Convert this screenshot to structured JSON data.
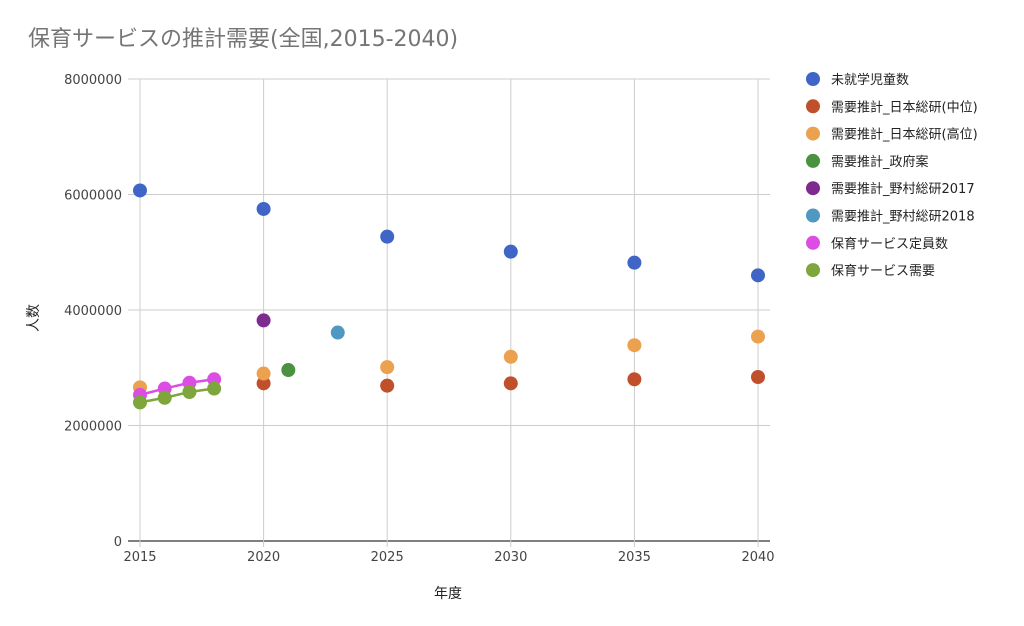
{
  "chart_data": {
    "type": "scatter",
    "title": "保育サービスの推計需要(全国,2015-2040)",
    "xlabel": "年度",
    "ylabel": "人数",
    "xlim": [
      2015,
      2040
    ],
    "ylim": [
      0,
      8000000
    ],
    "x_ticks": [
      "2015",
      "2020",
      "2025",
      "2030",
      "2035",
      "2040"
    ],
    "y_ticks": [
      "0",
      "2000000",
      "4000000",
      "6000000",
      "8000000"
    ],
    "grid": true,
    "legend_position": "right",
    "series": [
      {
        "name": "未就学児童数",
        "color": "#3f66c6",
        "line": false,
        "points": [
          [
            2015,
            6070000
          ],
          [
            2020,
            5750000
          ],
          [
            2025,
            5270000
          ],
          [
            2030,
            5010000
          ],
          [
            2035,
            4820000
          ],
          [
            2040,
            4600000
          ]
        ]
      },
      {
        "name": "需要推計_日本総研(中位)",
        "color": "#c0502c",
        "line": false,
        "points": [
          [
            2020,
            2730000
          ],
          [
            2025,
            2690000
          ],
          [
            2030,
            2730000
          ],
          [
            2035,
            2800000
          ],
          [
            2040,
            2840000
          ]
        ]
      },
      {
        "name": "需要推計_日本総研(高位)",
        "color": "#eba14d",
        "line": false,
        "points": [
          [
            2015,
            2660000
          ],
          [
            2020,
            2900000
          ],
          [
            2025,
            3010000
          ],
          [
            2030,
            3190000
          ],
          [
            2035,
            3390000
          ],
          [
            2040,
            3540000
          ]
        ]
      },
      {
        "name": "需要推計_政府案",
        "color": "#4a9140",
        "line": false,
        "points": [
          [
            2021,
            2960000
          ]
        ]
      },
      {
        "name": "需要推計_野村総研2017",
        "color": "#7d2b8f",
        "line": false,
        "points": [
          [
            2020,
            3820000
          ]
        ]
      },
      {
        "name": "需要推計_野村総研2018",
        "color": "#4e98c1",
        "line": false,
        "points": [
          [
            2023,
            3610000
          ]
        ]
      },
      {
        "name": "保育サービス定員数",
        "color": "#dc4ee3",
        "line": true,
        "points": [
          [
            2015,
            2530000
          ],
          [
            2016,
            2640000
          ],
          [
            2017,
            2740000
          ],
          [
            2018,
            2800000
          ]
        ]
      },
      {
        "name": "保育サービス需要",
        "color": "#7fa53d",
        "line": true,
        "points": [
          [
            2015,
            2400000
          ],
          [
            2016,
            2480000
          ],
          [
            2017,
            2580000
          ],
          [
            2018,
            2640000
          ]
        ]
      }
    ]
  }
}
